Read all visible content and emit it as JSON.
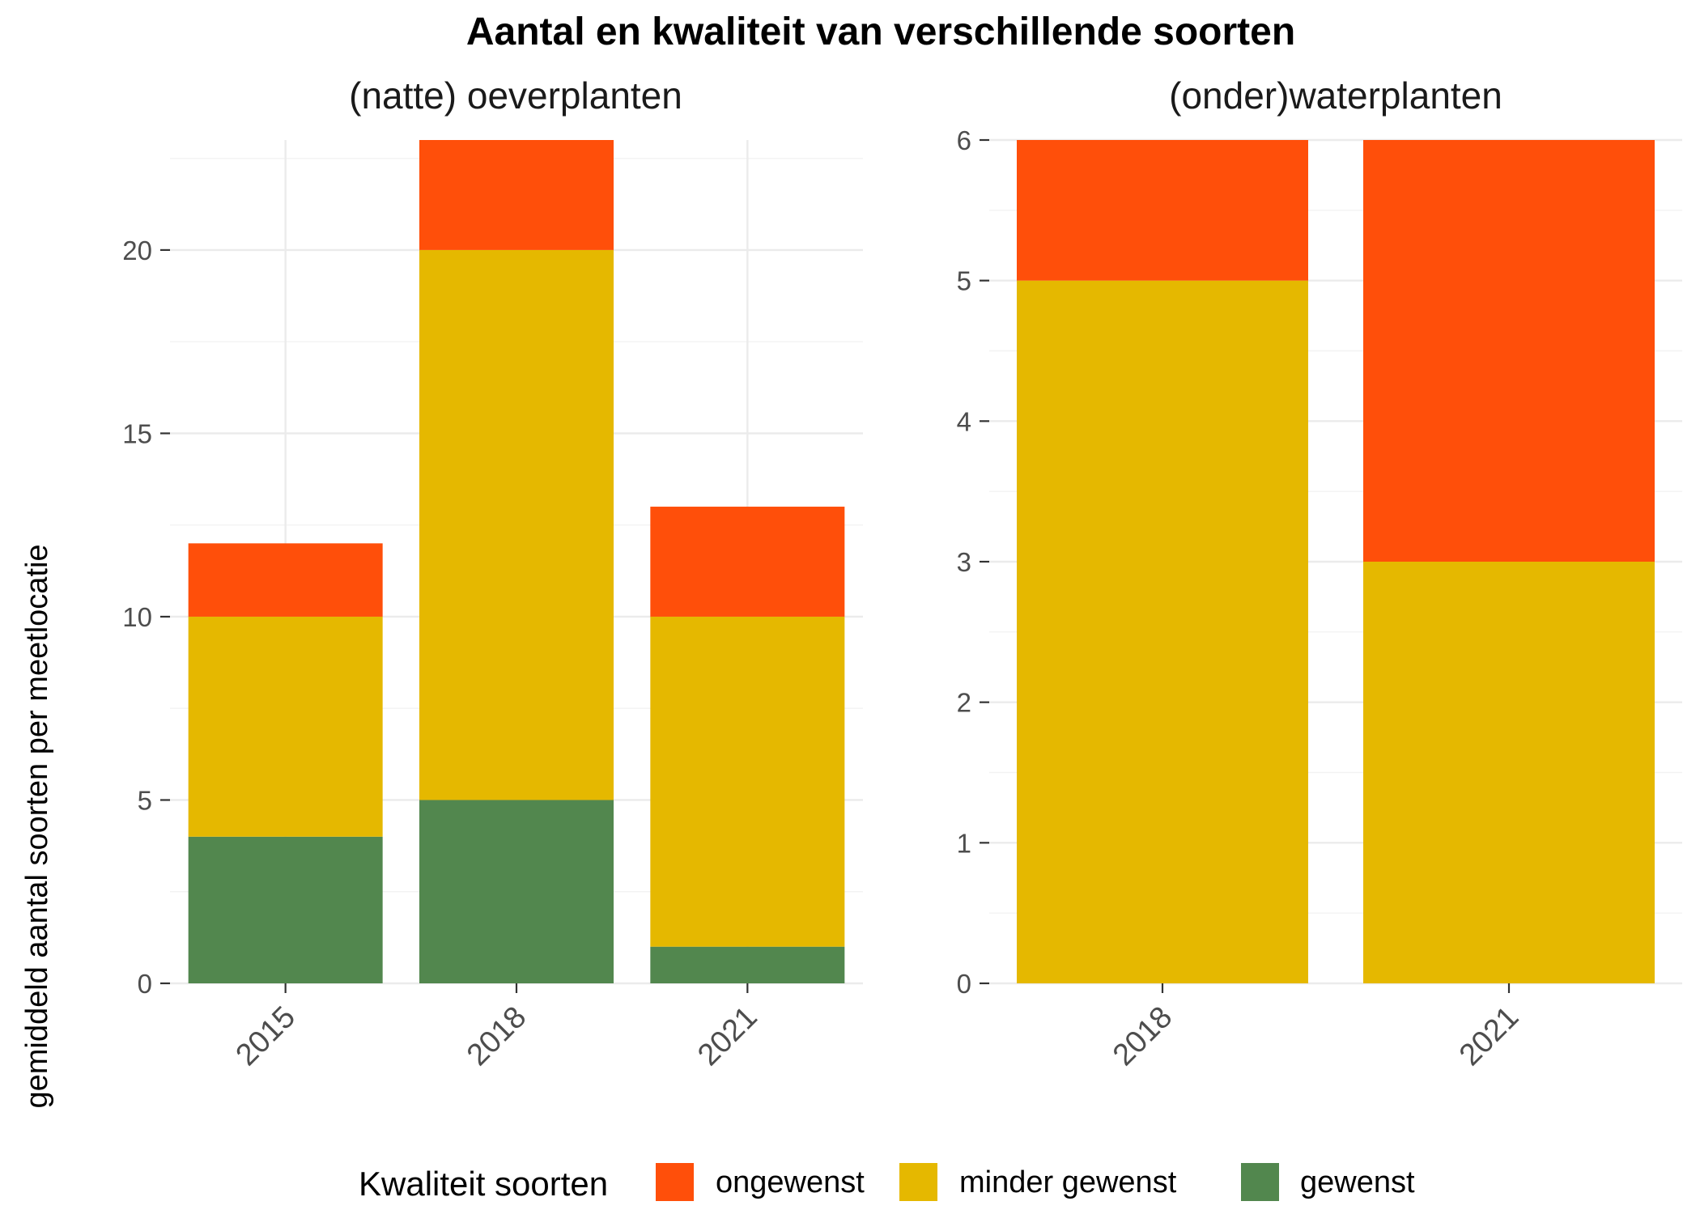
{
  "title": "Aantal en kwaliteit van verschillende soorten",
  "ylabel": "gemiddeld aantal soorten per meetlocatie",
  "colors": {
    "ongewenst": "#FF4F0A",
    "minder gewenst": "#E5B800",
    "gewenst": "#52874E"
  },
  "legend": {
    "title": "Kwaliteit soorten",
    "placement": "bottom",
    "items": [
      {
        "key": "ongewenst",
        "label": "ongewenst"
      },
      {
        "key": "minder gewenst",
        "label": "minder gewenst"
      },
      {
        "key": "gewenst",
        "label": "gewenst"
      }
    ]
  },
  "chart_data": [
    {
      "type": "bar",
      "stacked": true,
      "subtitle": "(natte) oeverplanten",
      "categories": [
        "2015",
        "2018",
        "2021"
      ],
      "ylim": [
        0,
        23
      ],
      "yticks": [
        0,
        5,
        10,
        15,
        20
      ],
      "grid": true,
      "series": [
        {
          "name": "gewenst",
          "values": [
            4,
            5,
            1
          ]
        },
        {
          "name": "minder gewenst",
          "values": [
            6,
            15,
            9
          ]
        },
        {
          "name": "ongewenst",
          "values": [
            2,
            3,
            3
          ]
        }
      ]
    },
    {
      "type": "bar",
      "stacked": true,
      "subtitle": "(onder)waterplanten",
      "categories": [
        "2018",
        "2021"
      ],
      "ylim": [
        0,
        6
      ],
      "yticks": [
        0,
        1,
        2,
        3,
        4,
        5,
        6
      ],
      "grid": true,
      "series": [
        {
          "name": "gewenst",
          "values": [
            0,
            0
          ]
        },
        {
          "name": "minder gewenst",
          "values": [
            5,
            3
          ]
        },
        {
          "name": "ongewenst",
          "values": [
            1,
            3
          ]
        }
      ]
    }
  ]
}
